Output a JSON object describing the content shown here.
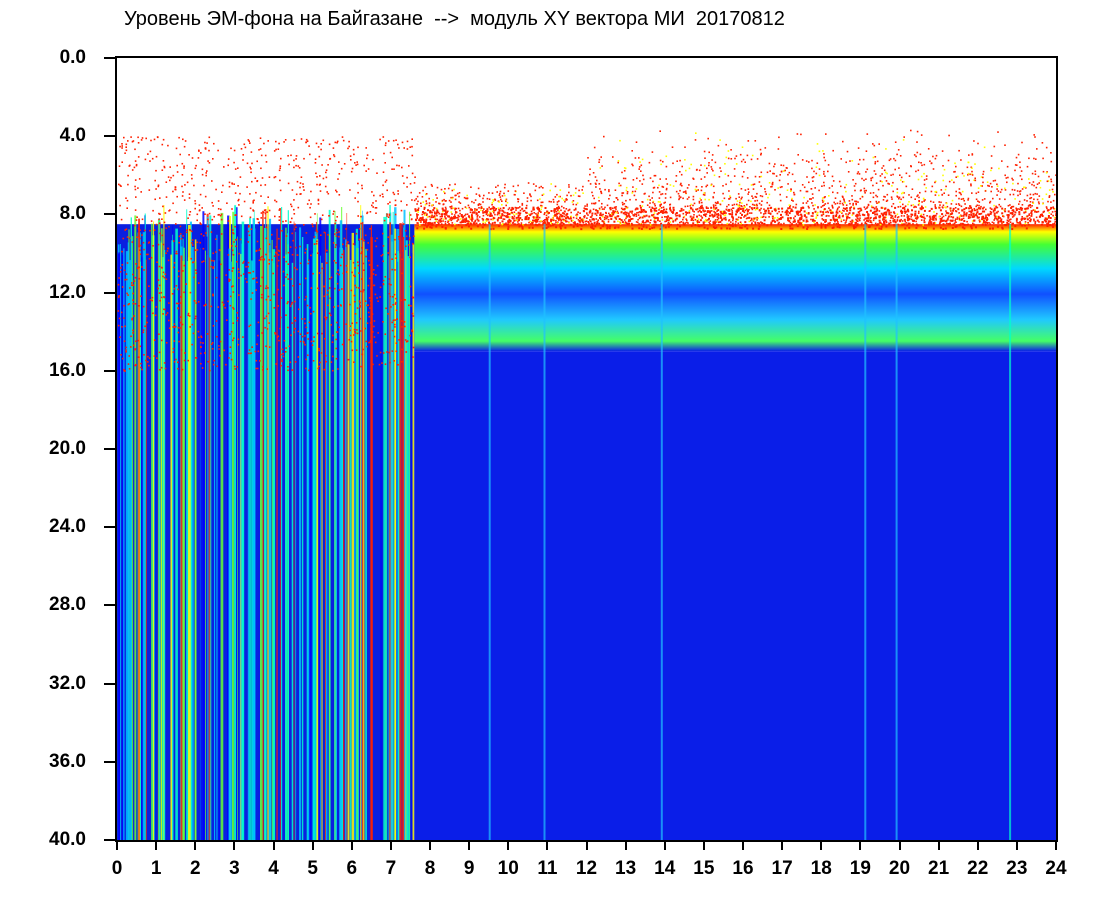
{
  "chart_data": {
    "type": "heatmap",
    "title": "Уровень ЭМ-фона на Байгазане  -->  модуль XY вектора МИ  20170812",
    "xlabel": "",
    "ylabel": "",
    "xlim": [
      0,
      24
    ],
    "ylim": [
      0,
      40
    ],
    "y_inverted": true,
    "x_ticks": [
      "0",
      "1",
      "2",
      "3",
      "4",
      "5",
      "6",
      "7",
      "8",
      "9",
      "10",
      "11",
      "12",
      "13",
      "14",
      "15",
      "16",
      "17",
      "18",
      "19",
      "20",
      "21",
      "22",
      "23",
      "24"
    ],
    "y_ticks": [
      "0.0",
      "4.0",
      "8.0",
      "12.0",
      "16.0",
      "20.0",
      "24.0",
      "28.0",
      "32.0",
      "36.0",
      "40.0"
    ],
    "colormap": [
      "#0000ff",
      "#00c0ff",
      "#00ffcc",
      "#66ff33",
      "#ffff00",
      "#ff2000"
    ],
    "grid": false,
    "legend": "none",
    "segments": [
      {
        "x_range": [
          0.0,
          7.6
        ],
        "red_top": 8.5,
        "green_band": [
          8.5,
          15.5
        ],
        "character": "vertical cyan/green/red streaks extending to 40"
      },
      {
        "x_range": [
          7.6,
          24.0
        ],
        "sparse_red_top": [
          3.0,
          8.0
        ],
        "red_edge": 8.5,
        "green_band": [
          8.5,
          15.0
        ],
        "blue_below": [
          15.0,
          40.0
        ]
      }
    ]
  }
}
